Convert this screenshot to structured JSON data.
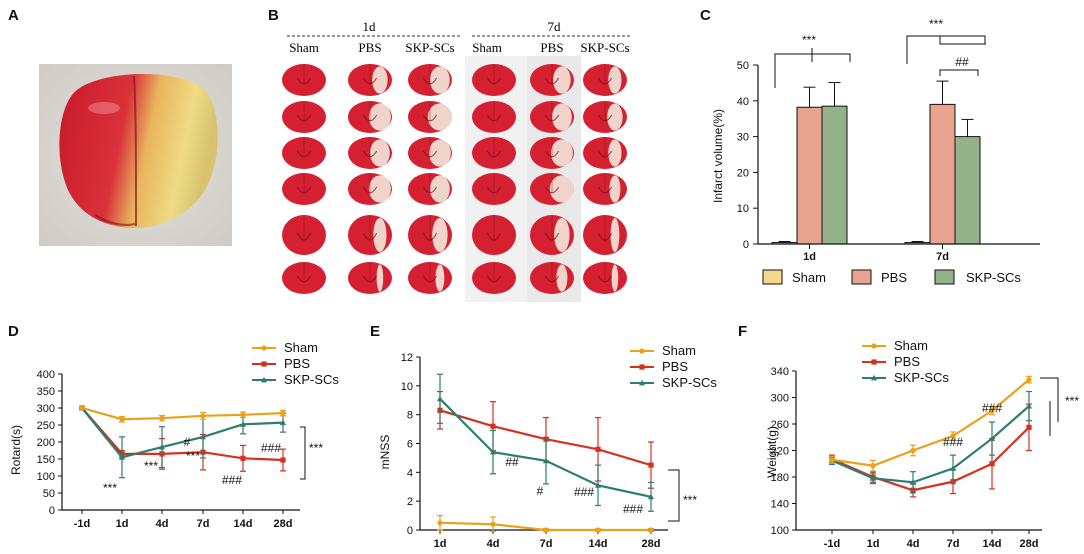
{
  "panels": {
    "A": {
      "letter": "A"
    },
    "B": {
      "letter": "B",
      "time_headers": [
        "1d",
        "7d"
      ],
      "group_headers": [
        "Sham",
        "PBS",
        "SKP-SCs",
        "Sham",
        "PBS",
        "SKP-SCs"
      ]
    },
    "C": {
      "letter": "C"
    },
    "D": {
      "letter": "D"
    },
    "E": {
      "letter": "E"
    },
    "F": {
      "letter": "F"
    }
  },
  "colors": {
    "sham_line": "#E8A21A",
    "pbs_line": "#D4311F",
    "skp_line": "#2E7D6F",
    "sham_bar": "#F5D98A",
    "pbs_bar": "#E9A48F",
    "skp_bar": "#93B28A",
    "brain_red": "#D42030",
    "brain_pale": "#F3E7DC"
  },
  "chart_data": [
    {
      "panel": "C",
      "type": "bar",
      "title": "",
      "xlabel": "",
      "ylabel": "Infarct volume(%)",
      "ylim": [
        0,
        50
      ],
      "yticks": [
        0,
        10,
        20,
        30,
        40,
        50
      ],
      "categories": [
        "1d",
        "7d"
      ],
      "legend_position": "bottom",
      "series": [
        {
          "name": "Sham",
          "values": [
            0.4,
            0.4
          ],
          "errors": [
            0.3,
            0.3
          ],
          "color": "#F5D98A"
        },
        {
          "name": "PBS",
          "values": [
            38.2,
            39.0
          ],
          "errors": [
            5.6,
            6.5
          ],
          "color": "#E9A48F"
        },
        {
          "name": "SKP-SCs",
          "values": [
            38.5,
            30.0
          ],
          "errors": [
            6.6,
            4.8
          ],
          "color": "#93B28A"
        }
      ],
      "annotations": [
        "***",
        "***",
        "##"
      ]
    },
    {
      "panel": "D",
      "type": "line",
      "title": "",
      "xlabel": "",
      "ylabel": "Rotard(s)",
      "ylim": [
        0,
        400
      ],
      "yticks": [
        0,
        50,
        100,
        150,
        200,
        250,
        300,
        350,
        400
      ],
      "categories": [
        "-1d",
        "1d",
        "4d",
        "7d",
        "14d",
        "28d"
      ],
      "legend_position": "top-right",
      "series": [
        {
          "name": "Sham",
          "values": [
            300,
            267,
            270,
            277,
            280,
            285
          ],
          "errors": [
            3,
            8,
            8,
            10,
            8,
            8
          ],
          "color": "#E8A21A"
        },
        {
          "name": "PBS",
          "values": [
            300,
            165,
            165,
            170,
            152,
            147
          ],
          "errors": [
            3,
            10,
            45,
            52,
            38,
            32
          ],
          "color": "#D4311F"
        },
        {
          "name": "SKP-SCs",
          "values": [
            300,
            155,
            185,
            215,
            252,
            257
          ],
          "errors": [
            3,
            60,
            60,
            62,
            28,
            28
          ],
          "color": "#2E7D6F"
        }
      ],
      "annotations": [
        "***",
        "***",
        "#",
        "***",
        "###",
        "###",
        "***"
      ]
    },
    {
      "panel": "E",
      "type": "line",
      "title": "",
      "xlabel": "",
      "ylabel": "mNSS",
      "ylim": [
        0,
        12
      ],
      "yticks": [
        0,
        2,
        4,
        6,
        8,
        10,
        12
      ],
      "categories": [
        "1d",
        "4d",
        "7d",
        "14d",
        "28d"
      ],
      "legend_position": "top-right",
      "series": [
        {
          "name": "Sham",
          "values": [
            0.5,
            0.4,
            0.0,
            0.0,
            0.0
          ],
          "errors": [
            0.5,
            0.5,
            0.1,
            0.1,
            0.1
          ],
          "color": "#E8A21A"
        },
        {
          "name": "PBS",
          "values": [
            8.3,
            7.2,
            6.3,
            5.6,
            4.5
          ],
          "errors": [
            1.3,
            1.7,
            1.5,
            2.2,
            1.6
          ],
          "color": "#D4311F"
        },
        {
          "name": "SKP-SCs",
          "values": [
            9.1,
            5.4,
            4.8,
            3.1,
            2.3
          ],
          "errors": [
            1.7,
            1.5,
            1.6,
            1.4,
            1.0
          ],
          "color": "#2E7D6F"
        }
      ],
      "annotations": [
        "##",
        "#",
        "###",
        "###",
        "***"
      ]
    },
    {
      "panel": "F",
      "type": "line",
      "title": "",
      "xlabel": "",
      "ylabel": "Weight(g)",
      "ylim": [
        100,
        340
      ],
      "yticks": [
        100,
        140,
        180,
        220,
        260,
        300,
        340
      ],
      "categories": [
        "-1d",
        "1d",
        "4d",
        "7d",
        "14d",
        "28d"
      ],
      "legend_position": "top-left",
      "series": [
        {
          "name": "Sham",
          "values": [
            206,
            197,
            220,
            242,
            280,
            327
          ],
          "errors": [
            5,
            8,
            8,
            6,
            6,
            5
          ],
          "color": "#E8A21A"
        },
        {
          "name": "PBS",
          "values": [
            207,
            180,
            160,
            173,
            200,
            255
          ],
          "errors": [
            6,
            8,
            10,
            18,
            38,
            35
          ],
          "color": "#D4311F"
        },
        {
          "name": "SKP-SCs",
          "values": [
            205,
            178,
            172,
            193,
            238,
            287
          ],
          "errors": [
            6,
            8,
            16,
            20,
            25,
            22
          ],
          "color": "#2E7D6F"
        }
      ],
      "annotations": [
        "###",
        "###",
        "***"
      ]
    }
  ]
}
